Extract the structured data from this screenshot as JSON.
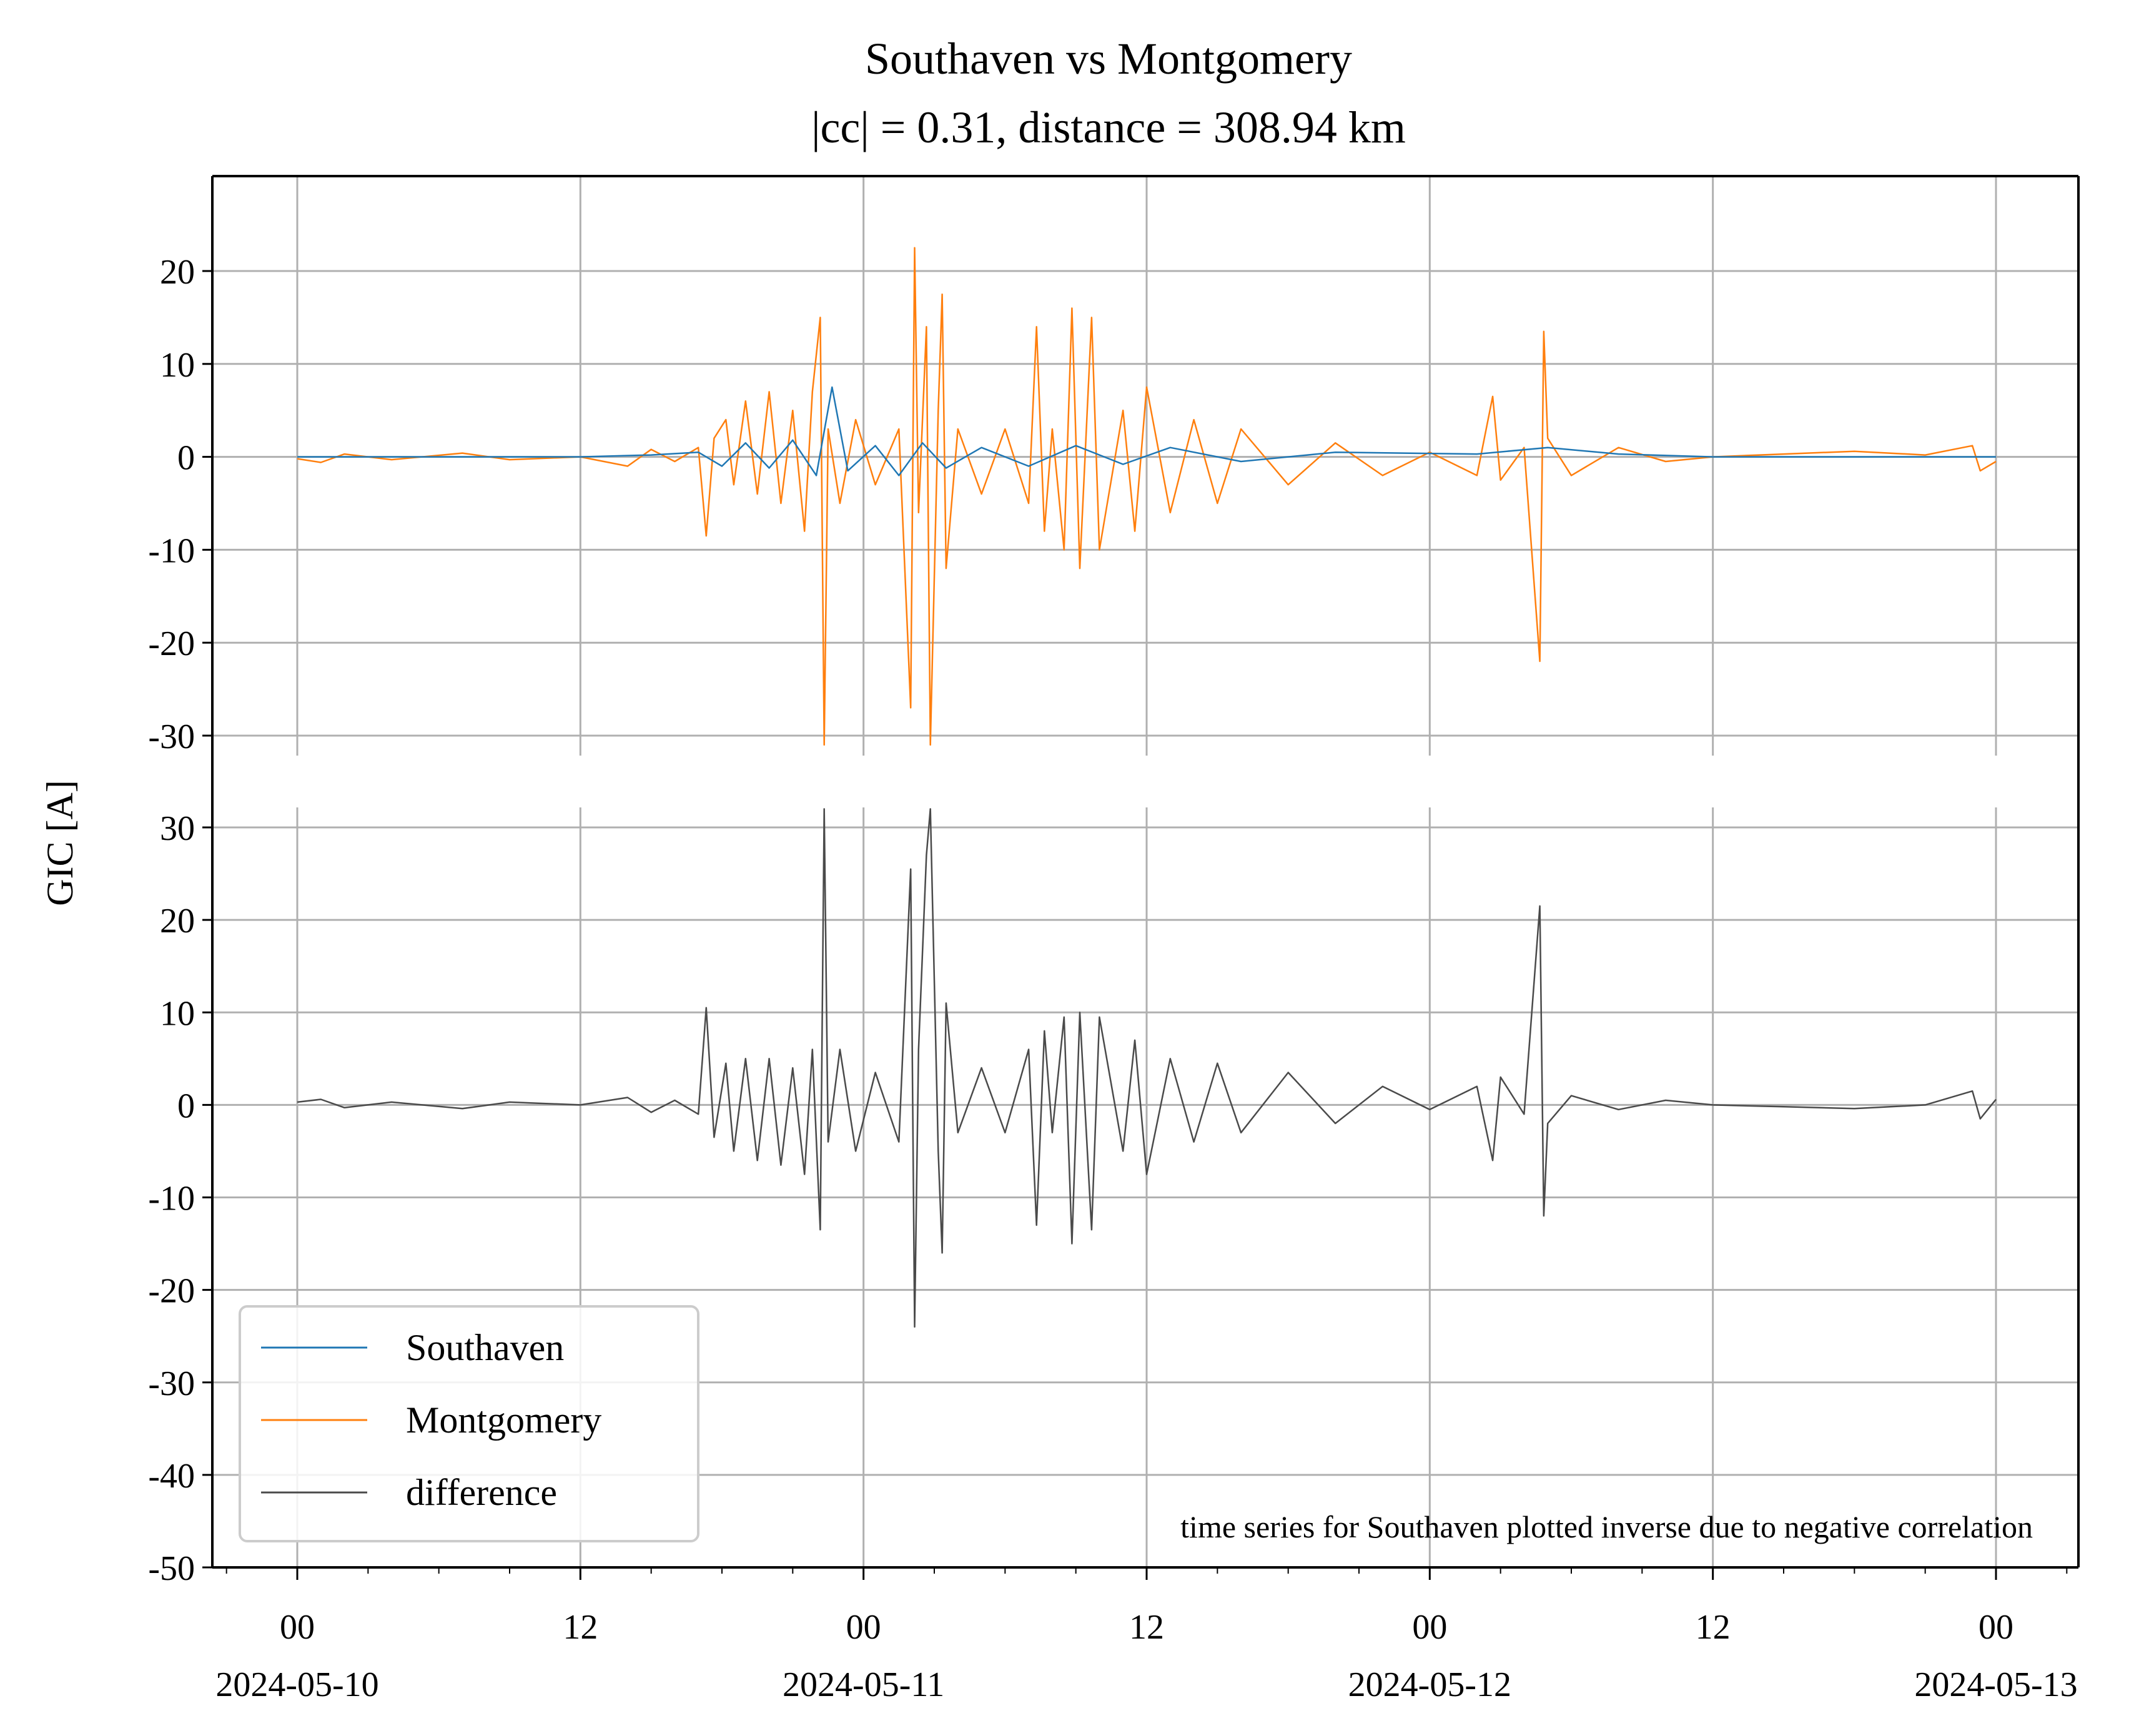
{
  "chart_data": {
    "type": "line",
    "title": "Southaven vs Montgomery",
    "subtitle": "|cc| = 0.31, distance = 308.94 km",
    "xlabel": "",
    "ylabel": "GIC [A]",
    "x_range": [
      "2024-05-10T00:00",
      "2024-05-13T00:00"
    ],
    "x_ticks": [
      {
        "t": "2024-05-10T00:00",
        "hour": "00",
        "date": "2024-05-10"
      },
      {
        "t": "2024-05-10T12:00",
        "hour": "12",
        "date": ""
      },
      {
        "t": "2024-05-11T00:00",
        "hour": "00",
        "date": "2024-05-11"
      },
      {
        "t": "2024-05-11T12:00",
        "hour": "12",
        "date": ""
      },
      {
        "t": "2024-05-12T00:00",
        "hour": "00",
        "date": "2024-05-12"
      },
      {
        "t": "2024-05-12T12:00",
        "hour": "12",
        "date": ""
      },
      {
        "t": "2024-05-13T00:00",
        "hour": "00",
        "date": "2024-05-13"
      }
    ],
    "y_ticks_top": [
      "20",
      "10",
      "0",
      "-10",
      "-20",
      "-30"
    ],
    "y_ticks_bottom": [
      "30",
      "20",
      "10",
      "0",
      "-10",
      "-20",
      "-30",
      "-40",
      "-50"
    ],
    "top_panel": {
      "ylim": [
        -30,
        30
      ]
    },
    "bottom_panel": {
      "ylim": [
        -50,
        32
      ]
    },
    "grid": true,
    "legend_position": "lower-left",
    "annotation": "time series for Southaven plotted inverse due to negative correlation",
    "series": [
      {
        "name": "Southaven",
        "panel": "top",
        "color": "#1f77b4",
        "points": [
          [
            "2024-05-10T00:00",
            0.0
          ],
          [
            "2024-05-10T06:00",
            0.0
          ],
          [
            "2024-05-10T12:00",
            0.0
          ],
          [
            "2024-05-10T15:00",
            0.2
          ],
          [
            "2024-05-10T17:00",
            0.5
          ],
          [
            "2024-05-10T18:00",
            -1.0
          ],
          [
            "2024-05-10T19:00",
            1.5
          ],
          [
            "2024-05-10T20:00",
            -1.2
          ],
          [
            "2024-05-10T21:00",
            1.8
          ],
          [
            "2024-05-10T22:00",
            -2.0
          ],
          [
            "2024-05-10T22:40",
            7.5
          ],
          [
            "2024-05-10T23:20",
            -1.5
          ],
          [
            "2024-05-11T00:30",
            1.2
          ],
          [
            "2024-05-11T01:30",
            -2.0
          ],
          [
            "2024-05-11T02:30",
            1.5
          ],
          [
            "2024-05-11T03:30",
            -1.2
          ],
          [
            "2024-05-11T05:00",
            1.0
          ],
          [
            "2024-05-11T07:00",
            -1.0
          ],
          [
            "2024-05-11T09:00",
            1.2
          ],
          [
            "2024-05-11T11:00",
            -0.8
          ],
          [
            "2024-05-11T13:00",
            1.0
          ],
          [
            "2024-05-11T16:00",
            -0.5
          ],
          [
            "2024-05-11T20:00",
            0.5
          ],
          [
            "2024-05-12T02:00",
            0.3
          ],
          [
            "2024-05-12T05:00",
            1.0
          ],
          [
            "2024-05-12T08:00",
            0.3
          ],
          [
            "2024-05-12T12:00",
            0.0
          ],
          [
            "2024-05-12T18:00",
            0.0
          ],
          [
            "2024-05-13T00:00",
            0.0
          ]
        ]
      },
      {
        "name": "Montgomery",
        "panel": "top",
        "color": "#ff7f0e",
        "points": [
          [
            "2024-05-10T00:00",
            -0.2
          ],
          [
            "2024-05-10T01:00",
            -0.6
          ],
          [
            "2024-05-10T02:00",
            0.3
          ],
          [
            "2024-05-10T04:00",
            -0.3
          ],
          [
            "2024-05-10T07:00",
            0.4
          ],
          [
            "2024-05-10T09:00",
            -0.3
          ],
          [
            "2024-05-10T12:00",
            0.0
          ],
          [
            "2024-05-10T14:00",
            -1.0
          ],
          [
            "2024-05-10T15:00",
            0.8
          ],
          [
            "2024-05-10T16:00",
            -0.5
          ],
          [
            "2024-05-10T17:00",
            1.0
          ],
          [
            "2024-05-10T17:20",
            -8.5
          ],
          [
            "2024-05-10T17:40",
            2.0
          ],
          [
            "2024-05-10T18:10",
            4.0
          ],
          [
            "2024-05-10T18:30",
            -3.0
          ],
          [
            "2024-05-10T19:00",
            6.0
          ],
          [
            "2024-05-10T19:30",
            -4.0
          ],
          [
            "2024-05-10T20:00",
            7.0
          ],
          [
            "2024-05-10T20:30",
            -5.0
          ],
          [
            "2024-05-10T21:00",
            5.0
          ],
          [
            "2024-05-10T21:30",
            -8.0
          ],
          [
            "2024-05-10T21:50",
            7.0
          ],
          [
            "2024-05-10T22:10",
            15.0
          ],
          [
            "2024-05-10T22:20",
            -31.0
          ],
          [
            "2024-05-10T22:30",
            3.0
          ],
          [
            "2024-05-10T23:00",
            -5.0
          ],
          [
            "2024-05-10T23:40",
            4.0
          ],
          [
            "2024-05-11T00:30",
            -3.0
          ],
          [
            "2024-05-11T01:30",
            3.0
          ],
          [
            "2024-05-11T02:00",
            -27.0
          ],
          [
            "2024-05-11T02:10",
            22.5
          ],
          [
            "2024-05-11T02:20",
            -6.0
          ],
          [
            "2024-05-11T02:40",
            14.0
          ],
          [
            "2024-05-11T02:50",
            -31.0
          ],
          [
            "2024-05-11T03:10",
            5.0
          ],
          [
            "2024-05-11T03:20",
            17.5
          ],
          [
            "2024-05-11T03:30",
            -12.0
          ],
          [
            "2024-05-11T04:00",
            3.0
          ],
          [
            "2024-05-11T05:00",
            -4.0
          ],
          [
            "2024-05-11T06:00",
            3.0
          ],
          [
            "2024-05-11T07:00",
            -5.0
          ],
          [
            "2024-05-11T07:20",
            14.0
          ],
          [
            "2024-05-11T07:40",
            -8.0
          ],
          [
            "2024-05-11T08:00",
            3.0
          ],
          [
            "2024-05-11T08:30",
            -10.0
          ],
          [
            "2024-05-11T08:50",
            16.0
          ],
          [
            "2024-05-11T09:10",
            -12.0
          ],
          [
            "2024-05-11T09:40",
            15.0
          ],
          [
            "2024-05-11T10:00",
            -10.0
          ],
          [
            "2024-05-11T11:00",
            5.0
          ],
          [
            "2024-05-11T11:30",
            -8.0
          ],
          [
            "2024-05-11T12:00",
            7.5
          ],
          [
            "2024-05-11T13:00",
            -6.0
          ],
          [
            "2024-05-11T14:00",
            4.0
          ],
          [
            "2024-05-11T15:00",
            -5.0
          ],
          [
            "2024-05-11T16:00",
            3.0
          ],
          [
            "2024-05-11T18:00",
            -3.0
          ],
          [
            "2024-05-11T20:00",
            1.5
          ],
          [
            "2024-05-11T22:00",
            -2.0
          ],
          [
            "2024-05-12T00:00",
            0.5
          ],
          [
            "2024-05-12T02:00",
            -2.0
          ],
          [
            "2024-05-12T02:40",
            6.5
          ],
          [
            "2024-05-12T03:00",
            -2.5
          ],
          [
            "2024-05-12T04:00",
            1.0
          ],
          [
            "2024-05-12T04:40",
            -22.0
          ],
          [
            "2024-05-12T04:50",
            13.5
          ],
          [
            "2024-05-12T05:00",
            2.0
          ],
          [
            "2024-05-12T06:00",
            -2.0
          ],
          [
            "2024-05-12T08:00",
            1.0
          ],
          [
            "2024-05-12T10:00",
            -0.5
          ],
          [
            "2024-05-12T12:00",
            0.0
          ],
          [
            "2024-05-12T15:00",
            0.3
          ],
          [
            "2024-05-12T18:00",
            0.6
          ],
          [
            "2024-05-12T21:00",
            0.2
          ],
          [
            "2024-05-12T23:00",
            1.2
          ],
          [
            "2024-05-12T23:20",
            -1.5
          ],
          [
            "2024-05-13T00:00",
            -0.5
          ]
        ]
      },
      {
        "name": "difference",
        "panel": "bottom",
        "color": "#4a4a4a",
        "points": [
          [
            "2024-05-10T00:00",
            0.3
          ],
          [
            "2024-05-10T01:00",
            0.6
          ],
          [
            "2024-05-10T02:00",
            -0.3
          ],
          [
            "2024-05-10T04:00",
            0.3
          ],
          [
            "2024-05-10T07:00",
            -0.4
          ],
          [
            "2024-05-10T09:00",
            0.3
          ],
          [
            "2024-05-10T12:00",
            0.0
          ],
          [
            "2024-05-10T14:00",
            0.8
          ],
          [
            "2024-05-10T15:00",
            -0.8
          ],
          [
            "2024-05-10T16:00",
            0.5
          ],
          [
            "2024-05-10T17:00",
            -1.0
          ],
          [
            "2024-05-10T17:20",
            10.5
          ],
          [
            "2024-05-10T17:40",
            -3.5
          ],
          [
            "2024-05-10T18:10",
            4.5
          ],
          [
            "2024-05-10T18:30",
            -5.0
          ],
          [
            "2024-05-10T19:00",
            5.0
          ],
          [
            "2024-05-10T19:30",
            -6.0
          ],
          [
            "2024-05-10T20:00",
            5.0
          ],
          [
            "2024-05-10T20:30",
            -6.5
          ],
          [
            "2024-05-10T21:00",
            4.0
          ],
          [
            "2024-05-10T21:30",
            -7.5
          ],
          [
            "2024-05-10T21:50",
            6.0
          ],
          [
            "2024-05-10T22:10",
            -13.5
          ],
          [
            "2024-05-10T22:20",
            32.0
          ],
          [
            "2024-05-10T22:30",
            -4.0
          ],
          [
            "2024-05-10T23:00",
            6.0
          ],
          [
            "2024-05-10T23:40",
            -5.0
          ],
          [
            "2024-05-11T00:30",
            3.5
          ],
          [
            "2024-05-11T01:30",
            -4.0
          ],
          [
            "2024-05-11T02:00",
            25.5
          ],
          [
            "2024-05-11T02:10",
            -24.0
          ],
          [
            "2024-05-11T02:20",
            6.0
          ],
          [
            "2024-05-11T02:40",
            27.0
          ],
          [
            "2024-05-11T02:50",
            32.0
          ],
          [
            "2024-05-11T03:10",
            -5.0
          ],
          [
            "2024-05-11T03:20",
            -16.0
          ],
          [
            "2024-05-11T03:30",
            11.0
          ],
          [
            "2024-05-11T04:00",
            -3.0
          ],
          [
            "2024-05-11T05:00",
            4.0
          ],
          [
            "2024-05-11T06:00",
            -3.0
          ],
          [
            "2024-05-11T07:00",
            6.0
          ],
          [
            "2024-05-11T07:20",
            -13.0
          ],
          [
            "2024-05-11T07:40",
            8.0
          ],
          [
            "2024-05-11T08:00",
            -3.0
          ],
          [
            "2024-05-11T08:30",
            9.5
          ],
          [
            "2024-05-11T08:50",
            -15.0
          ],
          [
            "2024-05-11T09:10",
            10.0
          ],
          [
            "2024-05-11T09:40",
            -13.5
          ],
          [
            "2024-05-11T10:00",
            9.5
          ],
          [
            "2024-05-11T11:00",
            -5.0
          ],
          [
            "2024-05-11T11:30",
            7.0
          ],
          [
            "2024-05-11T12:00",
            -7.5
          ],
          [
            "2024-05-11T13:00",
            5.0
          ],
          [
            "2024-05-11T14:00",
            -4.0
          ],
          [
            "2024-05-11T15:00",
            4.5
          ],
          [
            "2024-05-11T16:00",
            -3.0
          ],
          [
            "2024-05-11T18:00",
            3.5
          ],
          [
            "2024-05-11T20:00",
            -2.0
          ],
          [
            "2024-05-11T22:00",
            2.0
          ],
          [
            "2024-05-12T00:00",
            -0.5
          ],
          [
            "2024-05-12T02:00",
            2.0
          ],
          [
            "2024-05-12T02:40",
            -6.0
          ],
          [
            "2024-05-12T03:00",
            3.0
          ],
          [
            "2024-05-12T04:00",
            -1.0
          ],
          [
            "2024-05-12T04:40",
            21.5
          ],
          [
            "2024-05-12T04:50",
            -12.0
          ],
          [
            "2024-05-12T05:00",
            -2.0
          ],
          [
            "2024-05-12T06:00",
            1.0
          ],
          [
            "2024-05-12T08:00",
            -0.5
          ],
          [
            "2024-05-12T10:00",
            0.5
          ],
          [
            "2024-05-12T12:00",
            0.0
          ],
          [
            "2024-05-12T15:00",
            -0.2
          ],
          [
            "2024-05-12T18:00",
            -0.4
          ],
          [
            "2024-05-12T21:00",
            0.0
          ],
          [
            "2024-05-12T23:00",
            1.5
          ],
          [
            "2024-05-12T23:20",
            -1.5
          ],
          [
            "2024-05-13T00:00",
            0.6
          ]
        ]
      }
    ]
  }
}
